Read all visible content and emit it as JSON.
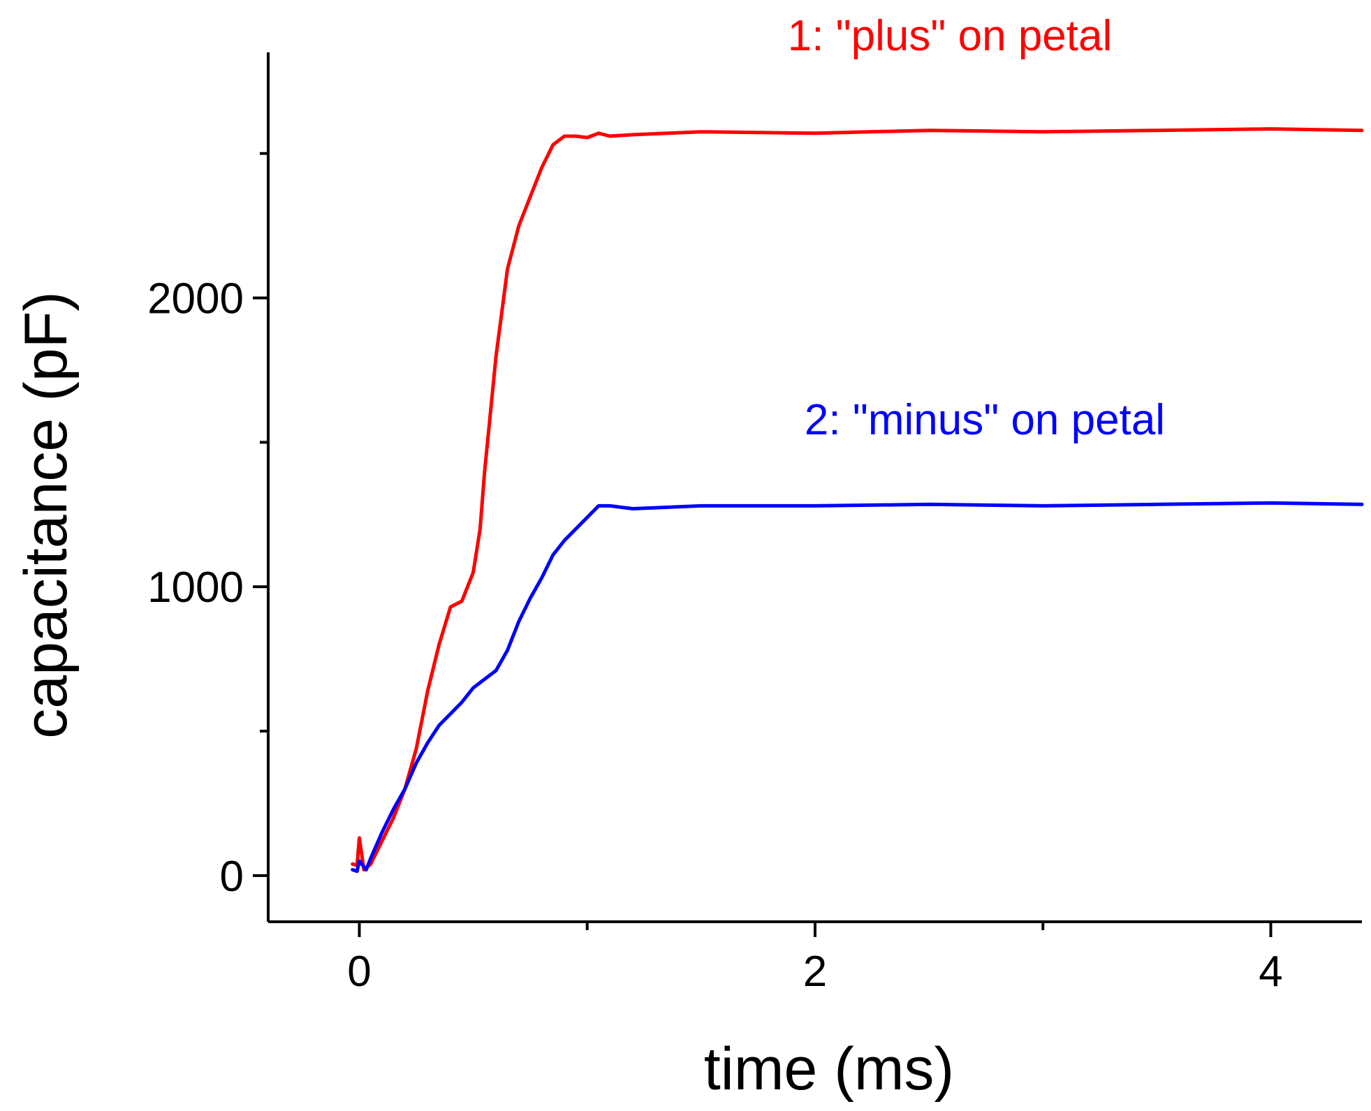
{
  "chart_data": {
    "type": "line",
    "title": "",
    "xlabel": "time (ms)",
    "ylabel": "capacitance (pF)",
    "xlim": [
      -0.4,
      4.4
    ],
    "ylim": [
      -160,
      2850
    ],
    "x_ticks": [
      0,
      2,
      4
    ],
    "x_minor_ticks": [
      1,
      3
    ],
    "y_ticks": [
      0,
      1000,
      2000
    ],
    "y_minor_ticks": [
      500,
      1500,
      2500
    ],
    "grid": false,
    "series": [
      {
        "name": "1: \"plus\" on petal",
        "color": "#ff0000",
        "x": [
          -0.03,
          -0.01,
          0.0,
          0.02,
          0.05,
          0.1,
          0.15,
          0.2,
          0.25,
          0.3,
          0.35,
          0.4,
          0.45,
          0.5,
          0.53,
          0.55,
          0.6,
          0.65,
          0.7,
          0.75,
          0.8,
          0.85,
          0.9,
          0.95,
          1.0,
          1.05,
          1.1,
          1.2,
          1.5,
          2.0,
          2.5,
          3.0,
          3.5,
          4.0,
          4.4
        ],
        "y": [
          40,
          35,
          130,
          20,
          40,
          120,
          200,
          300,
          440,
          640,
          800,
          930,
          950,
          1050,
          1200,
          1400,
          1800,
          2100,
          2250,
          2350,
          2450,
          2530,
          2560,
          2560,
          2555,
          2570,
          2560,
          2565,
          2575,
          2570,
          2580,
          2575,
          2580,
          2585,
          2580
        ]
      },
      {
        "name": "2: \"minus\" on petal",
        "color": "#0000ff",
        "x": [
          -0.03,
          -0.01,
          0.0,
          0.03,
          0.05,
          0.1,
          0.15,
          0.2,
          0.25,
          0.3,
          0.35,
          0.4,
          0.45,
          0.5,
          0.55,
          0.6,
          0.65,
          0.7,
          0.75,
          0.8,
          0.85,
          0.9,
          0.95,
          1.0,
          1.05,
          1.1,
          1.2,
          1.5,
          2.0,
          2.5,
          3.0,
          3.5,
          4.0,
          4.4
        ],
        "y": [
          20,
          15,
          50,
          20,
          60,
          150,
          230,
          300,
          390,
          460,
          520,
          560,
          600,
          650,
          680,
          710,
          780,
          880,
          960,
          1030,
          1110,
          1160,
          1200,
          1240,
          1280,
          1280,
          1270,
          1280,
          1280,
          1285,
          1280,
          1285,
          1290,
          1285
        ]
      }
    ],
    "annotations": [
      {
        "text": "1: \"plus\" on petal",
        "color": "#ff0000"
      },
      {
        "text": "2: \"minus\" on petal",
        "color": "#0000ff"
      }
    ]
  }
}
